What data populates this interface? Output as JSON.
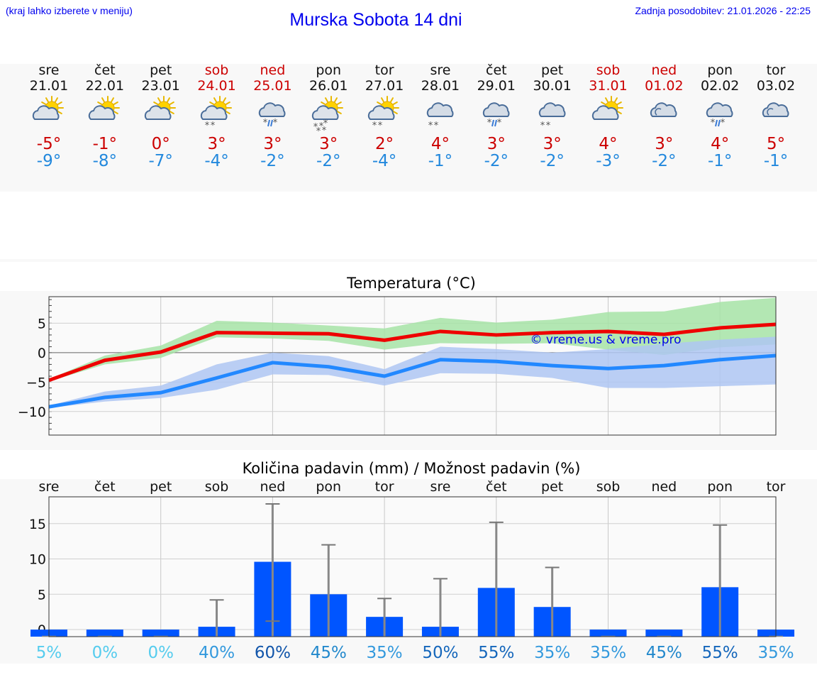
{
  "header": {
    "hint": "(kraj lahko izberete v meniju)",
    "title": "Murska Sobota 14 dni",
    "updated": "Zadnja posodobitev: 21.01.2026 - 22:25"
  },
  "days": [
    {
      "name": "sre",
      "date": "21.01",
      "weekend": false,
      "icon": "sun-cloud-icon",
      "max": "-5°",
      "min": "-9°"
    },
    {
      "name": "čet",
      "date": "22.01",
      "weekend": false,
      "icon": "sun-cloud-icon",
      "max": "-1°",
      "min": "-8°"
    },
    {
      "name": "pet",
      "date": "23.01",
      "weekend": false,
      "icon": "sun-cloud-icon",
      "max": "0°",
      "min": "-7°"
    },
    {
      "name": "sob",
      "date": "24.01",
      "weekend": true,
      "icon": "sun-cloud-snow-icon",
      "max": "3°",
      "min": "-4°"
    },
    {
      "name": "ned",
      "date": "25.01",
      "weekend": true,
      "icon": "cloud-sleet-icon",
      "max": "3°",
      "min": "-2°"
    },
    {
      "name": "pon",
      "date": "26.01",
      "weekend": false,
      "icon": "sun-cloud-heavy-snow-icon",
      "max": "3°",
      "min": "-2°"
    },
    {
      "name": "tor",
      "date": "27.01",
      "weekend": false,
      "icon": "sun-cloud-snow-icon",
      "max": "2°",
      "min": "-4°"
    },
    {
      "name": "sre",
      "date": "28.01",
      "weekend": false,
      "icon": "cloud-snow-icon",
      "max": "4°",
      "min": "-1°"
    },
    {
      "name": "čet",
      "date": "29.01",
      "weekend": false,
      "icon": "cloud-sleet-icon",
      "max": "3°",
      "min": "-2°"
    },
    {
      "name": "pet",
      "date": "30.01",
      "weekend": false,
      "icon": "cloud-snow-icon",
      "max": "3°",
      "min": "-2°"
    },
    {
      "name": "sob",
      "date": "31.01",
      "weekend": true,
      "icon": "sun-cloud-icon",
      "max": "4°",
      "min": "-3°"
    },
    {
      "name": "ned",
      "date": "01.02",
      "weekend": true,
      "icon": "cloud-icon",
      "max": "3°",
      "min": "-2°"
    },
    {
      "name": "pon",
      "date": "02.02",
      "weekend": false,
      "icon": "cloud-sleet-icon",
      "max": "4°",
      "min": "-1°"
    },
    {
      "name": "tor",
      "date": "03.02",
      "weekend": false,
      "icon": "cloud-icon",
      "max": "5°",
      "min": "-1°"
    }
  ],
  "chart_data": [
    {
      "type": "line",
      "title": "Temperatura (°C)",
      "watermark": "© vreme.us & vreme.pro",
      "ylim": [
        -14,
        9.5
      ],
      "yticks": [
        -10,
        -5,
        0,
        5
      ],
      "ytick_labels": [
        "−10",
        "−5",
        "0",
        "5"
      ],
      "x": [
        0,
        1,
        2,
        3,
        4,
        5,
        6,
        7,
        8,
        9,
        10,
        11,
        12,
        13
      ],
      "series": [
        {
          "name": "max",
          "color": "#ee0000",
          "values": [
            -4.7,
            -1.3,
            0.1,
            3.4,
            3.3,
            3.2,
            2.1,
            3.6,
            3.0,
            3.4,
            3.6,
            3.1,
            4.2,
            4.8
          ],
          "band_low": [
            -4.9,
            -2.0,
            -0.9,
            2.6,
            2.4,
            2.0,
            0.5,
            1.6,
            1.5,
            1.6,
            0.5,
            -0.4,
            0.9,
            1.4
          ],
          "band_high": [
            -4.5,
            -0.5,
            1.2,
            5.4,
            5.1,
            4.6,
            4.1,
            5.9,
            5.1,
            5.6,
            6.9,
            7.0,
            8.6,
            9.3
          ],
          "band_color": "#a6e3a6"
        },
        {
          "name": "min",
          "color": "#2288ff",
          "values": [
            -9.2,
            -7.6,
            -6.8,
            -4.3,
            -1.7,
            -2.4,
            -4.0,
            -1.2,
            -1.5,
            -2.2,
            -2.7,
            -2.2,
            -1.2,
            -0.5
          ],
          "band_low": [
            -9.4,
            -8.3,
            -7.7,
            -6.3,
            -3.7,
            -3.8,
            -5.6,
            -3.5,
            -3.6,
            -4.3,
            -6.0,
            -6.0,
            -5.7,
            -5.4
          ],
          "band_high": [
            -9.0,
            -6.6,
            -5.6,
            -2.0,
            0.0,
            -0.6,
            -2.8,
            1.0,
            0.6,
            0.0,
            0.6,
            1.5,
            2.2,
            2.7
          ],
          "band_color": "#aec6f2"
        }
      ]
    },
    {
      "type": "bar",
      "title": "Količina padavin (mm) / Možnost padavin (%)",
      "categories": [
        "sre",
        "čet",
        "pet",
        "sob",
        "ned",
        "pon",
        "tor",
        "sre",
        "čet",
        "pet",
        "sob",
        "ned",
        "pon",
        "tor"
      ],
      "ylim": [
        -1,
        18.8
      ],
      "yticks": [
        0,
        5,
        10,
        15
      ],
      "ytick_labels": [
        "0",
        "5",
        "10",
        "15"
      ],
      "values": [
        0,
        0,
        0,
        0.4,
        9.6,
        5.0,
        1.8,
        0.4,
        5.9,
        3.2,
        0,
        0,
        6.0,
        0
      ],
      "err_low": [
        0,
        0,
        0,
        0,
        1.2,
        0,
        0,
        0,
        0,
        0,
        0,
        0,
        0,
        0
      ],
      "err_high": [
        0,
        0,
        0,
        4.2,
        17.8,
        12.0,
        4.4,
        7.2,
        15.2,
        8.8,
        0,
        0,
        14.8,
        0
      ],
      "bar_color": "#0055ff",
      "probability": [
        "5%",
        "0%",
        "0%",
        "40%",
        "60%",
        "45%",
        "35%",
        "50%",
        "55%",
        "35%",
        "35%",
        "45%",
        "55%",
        "35%"
      ],
      "probability_colors": [
        "#55ccee",
        "#55ccee",
        "#55ccee",
        "#3399dd",
        "#1155aa",
        "#2288cc",
        "#3399dd",
        "#1466bb",
        "#1466bb",
        "#3399dd",
        "#3399dd",
        "#2288cc",
        "#1466bb",
        "#3399dd"
      ]
    }
  ]
}
